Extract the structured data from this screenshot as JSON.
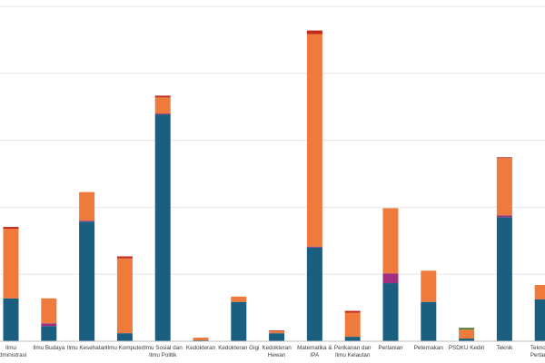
{
  "chart_data": {
    "type": "bar",
    "stacked": true,
    "title": "",
    "xlabel": "",
    "ylabel": "",
    "ylim": [
      0,
      375
    ],
    "grid": true,
    "legend": "none",
    "categories": [
      [
        "Ilmu",
        "Administrasi"
      ],
      [
        "Ilmu Budaya"
      ],
      [
        "Ilmu Kesehatan"
      ],
      [
        "Ilmu Komputer"
      ],
      [
        "Ilmu Sosial dan",
        "Ilmu Politik"
      ],
      [
        "Kedokteran"
      ],
      [
        "Kedokteran Gigi"
      ],
      [
        "Kedokteran",
        "Hewan"
      ],
      [
        "Matematika &",
        "IPA"
      ],
      [
        "Perikanan dan",
        "Ilmu Kelautan"
      ],
      [
        "Pertanian"
      ],
      [
        "Peternakan"
      ],
      [
        "PSDKU Kediri"
      ],
      [
        "Teknik"
      ],
      [
        "Teknologi",
        "Pertanian"
      ]
    ],
    "series": [
      {
        "color": "#1a5f7f",
        "values": [
          48,
          17,
          134,
          9,
          254,
          1,
          44,
          9,
          105,
          5,
          65,
          44,
          3,
          139,
          47
        ]
      },
      {
        "color": "#a0307f",
        "values": [
          0,
          3,
          1,
          0,
          1,
          0,
          0,
          0,
          1,
          0,
          11,
          0,
          0,
          2,
          0
        ]
      },
      {
        "color": "#ee7a3c",
        "values": [
          78,
          28,
          32,
          84,
          18,
          3,
          6,
          2,
          238,
          27,
          73,
          35,
          10,
          64,
          16
        ]
      },
      {
        "color": "#c22a1e",
        "values": [
          2,
          0,
          0,
          2,
          2,
          0,
          0,
          1,
          4,
          2,
          0,
          0,
          0,
          1,
          0
        ]
      },
      {
        "color": "#4d7a2a",
        "values": [
          0,
          0,
          0,
          0,
          0,
          0,
          0,
          0,
          0,
          0,
          0,
          0,
          2,
          0,
          0
        ]
      }
    ]
  }
}
